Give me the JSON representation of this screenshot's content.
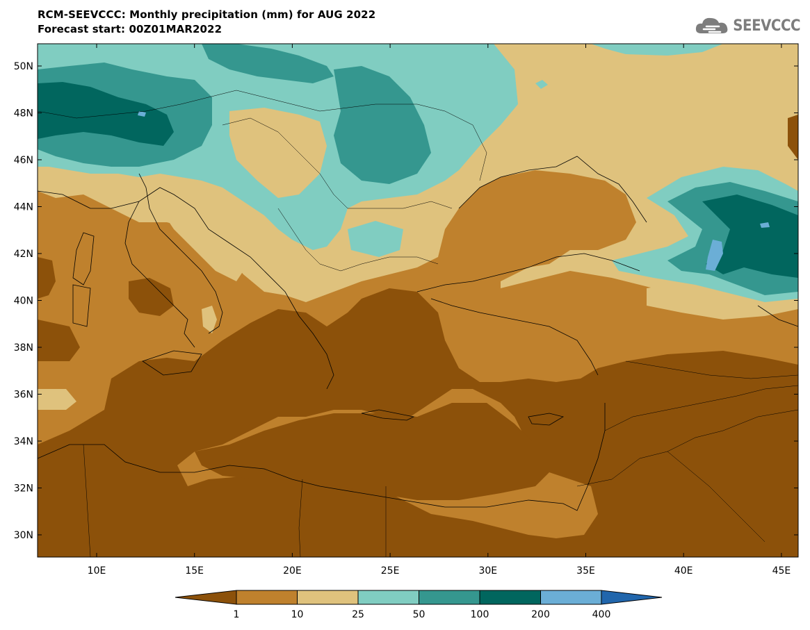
{
  "title": {
    "line1": "RCM-SEEVCCC: Monthly precipitation (mm) for AUG 2022",
    "line2": "Forecast start: 00Z01MAR2022"
  },
  "logo": {
    "text": "SEEVCCC",
    "icon": "cloud-icon"
  },
  "map": {
    "lat_labels": [
      "50N",
      "48N",
      "46N",
      "44N",
      "42N",
      "40N",
      "38N",
      "36N",
      "34N",
      "32N",
      "30N"
    ],
    "lon_labels": [
      "10E",
      "15E",
      "20E",
      "25E",
      "30E",
      "35E",
      "40E",
      "45E"
    ]
  },
  "colors": {
    "lt1": "#8c510a",
    "c1_10": "#bf812d",
    "c10_25": "#dfc27d",
    "c25_50": "#80cdc1",
    "c50_100": "#35978f",
    "c100_200": "#01665e",
    "c200_400": "#6baed6",
    "gt400": "#2166ac"
  },
  "colorbar": {
    "labels": [
      "1",
      "10",
      "25",
      "50",
      "100",
      "200",
      "400"
    ]
  }
}
